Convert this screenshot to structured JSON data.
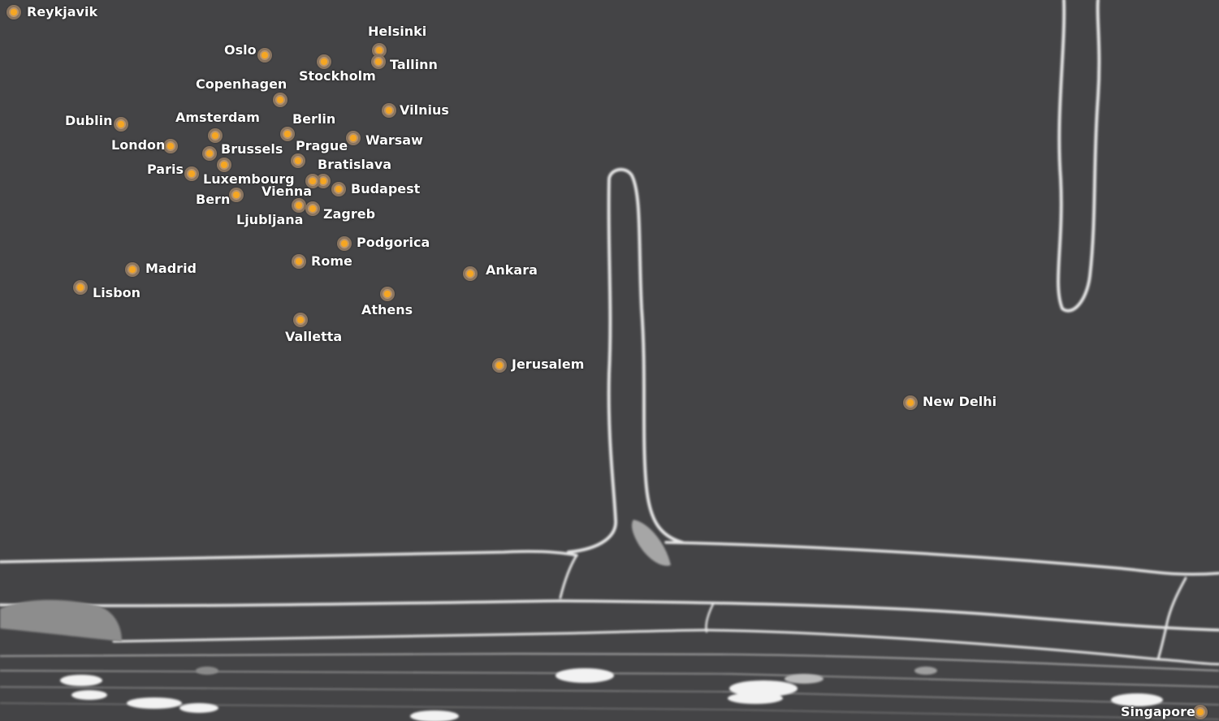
{
  "map": {
    "colors": {
      "background": "#444446",
      "marker_core": "#f5a623",
      "marker_ring": "#b9946a",
      "label": "#ffffff",
      "cell_wall": "#e8e8e8"
    },
    "marker_icon": "city-dot-icon",
    "cities": [
      "Reykjavik",
      "Helsinki",
      "Oslo",
      "Stockholm",
      "Tallinn",
      "Copenhagen",
      "Vilnius",
      "Dublin",
      "Amsterdam",
      "Berlin",
      "London",
      "Warsaw",
      "Brussels",
      "Prague",
      "Paris",
      "Bratislava",
      "Luxembourg",
      "Vienna",
      "Budapest",
      "Bern",
      "Ljubljana",
      "Zagreb",
      "Podgorica",
      "Rome",
      "Madrid",
      "Ankara",
      "Lisbon",
      "Athens",
      "Valletta",
      "Jerusalem",
      "New Delhi",
      "Singapore"
    ]
  }
}
